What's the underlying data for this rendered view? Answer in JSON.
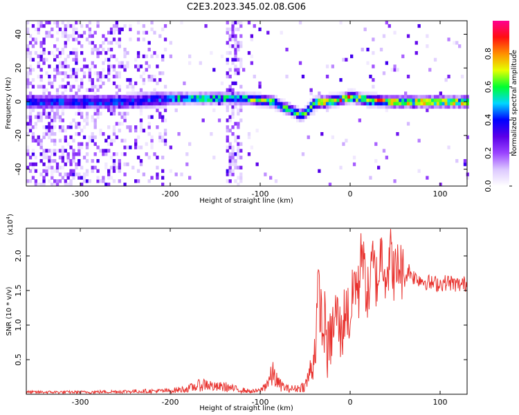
{
  "figure": {
    "title": "C2E3.2023.345.02.08.G06"
  },
  "chart_data": [
    {
      "type": "heatmap",
      "xlabel": "Height of straight line (km)",
      "ylabel": "Frequency (Hz)",
      "xlim": [
        -360,
        130
      ],
      "ylim": [
        -50,
        48
      ],
      "xticks": [
        -300,
        -200,
        -100,
        0,
        100
      ],
      "yticks": [
        -40,
        -20,
        0,
        20,
        40
      ],
      "colorbar": {
        "label": "Normalized spectral amplitude",
        "range": [
          0.0,
          1.0
        ],
        "ticks": [
          "0.0",
          "0.2",
          "0.4",
          "0.6",
          "0.8"
        ],
        "colors": [
          "#ffffff",
          "#dcc8ff",
          "#9a44ff",
          "#5a00e8",
          "#0000ff",
          "#00d6ff",
          "#00ff30",
          "#e6ff00",
          "#ff9000",
          "#ff1010",
          "#ff0090"
        ]
      },
      "line_center_hz": [
        [
          -355,
          0
        ],
        [
          -300,
          0
        ],
        [
          -250,
          0
        ],
        [
          -200,
          2
        ],
        [
          -150,
          2
        ],
        [
          -120,
          2
        ],
        [
          -100,
          1
        ],
        [
          -85,
          0
        ],
        [
          -75,
          -3
        ],
        [
          -65,
          -5
        ],
        [
          -55,
          -8
        ],
        [
          -50,
          -7
        ],
        [
          -40,
          -1
        ],
        [
          -30,
          0
        ],
        [
          -15,
          1
        ],
        [
          -5,
          2
        ],
        [
          0,
          3
        ],
        [
          20,
          1
        ],
        [
          50,
          0
        ],
        [
          80,
          0
        ],
        [
          130,
          0
        ]
      ],
      "grid": false
    },
    {
      "type": "line",
      "xlabel": "Height of straight line (km)",
      "ylabel": "SNR (10 * v/v)",
      "yscale_label": "(x10",
      "yscale_exp": "4",
      "yscale_suffix": ")",
      "xlim": [
        -360,
        130
      ],
      "ylim": [
        0,
        2.4
      ],
      "xticks": [
        -300,
        -200,
        -100,
        0,
        100
      ],
      "yticks": [
        0.5,
        1.0,
        1.5,
        2.0
      ],
      "ytick_labels": [
        "0.5",
        "1.0",
        "1.5",
        "2.0"
      ],
      "color": "#e8302c",
      "series": [
        {
          "x": [
            -360,
            -300,
            -250,
            -200,
            -180,
            -170,
            -160,
            -150,
            -140,
            -130,
            -120,
            -110,
            -100,
            -95,
            -90,
            -85,
            -80,
            -70,
            -60,
            -50,
            -45,
            -40,
            -38,
            -35,
            -30,
            -28,
            -25,
            -20,
            -15,
            -10,
            -5,
            0,
            5,
            10,
            12,
            15,
            20,
            25,
            30,
            35,
            40,
            45,
            50,
            55,
            60,
            65,
            70,
            80,
            90,
            100,
            110,
            120,
            130
          ],
          "y": [
            0.03,
            0.03,
            0.04,
            0.05,
            0.08,
            0.12,
            0.15,
            0.1,
            0.11,
            0.08,
            0.06,
            0.04,
            0.05,
            0.12,
            0.2,
            0.3,
            0.15,
            0.08,
            0.08,
            0.12,
            0.3,
            0.55,
            0.9,
            1.55,
            0.8,
            1.1,
            0.6,
            0.9,
            1.2,
            0.8,
            1.3,
            1.05,
            1.7,
            1.4,
            2.35,
            1.8,
            1.4,
            1.9,
            1.6,
            2.1,
            1.75,
            2.0,
            1.7,
            1.9,
            1.65,
            1.8,
            1.7,
            1.65,
            1.6,
            1.6,
            1.62,
            1.58,
            1.6
          ]
        }
      ],
      "grid": false
    }
  ]
}
